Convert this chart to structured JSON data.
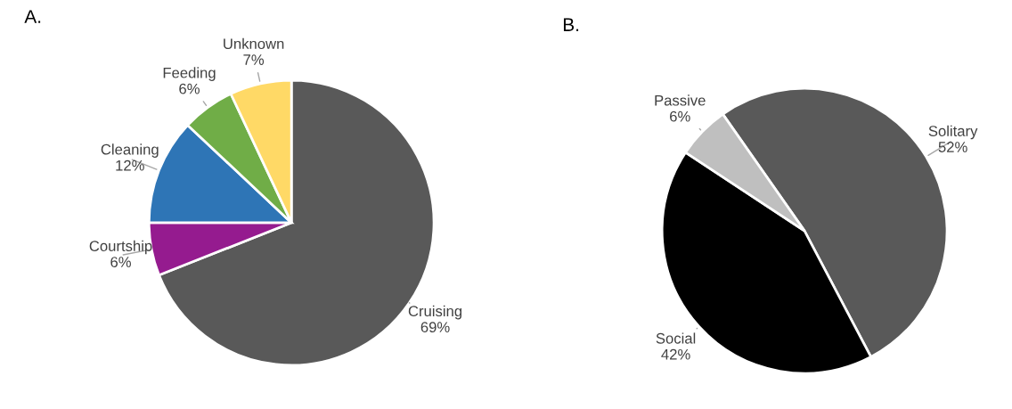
{
  "chart_data": [
    {
      "type": "pie",
      "title": "A.",
      "categories": [
        "Cruising",
        "Courtship",
        "Cleaning",
        "Feeding",
        "Unknown"
      ],
      "values": [
        69,
        6,
        12,
        6,
        7
      ],
      "value_labels": [
        "69%",
        "6%",
        "12%",
        "6%",
        "7%"
      ],
      "colors": [
        "#595959",
        "#951b8f",
        "#2e75b6",
        "#70ad47",
        "#ffd966"
      ]
    },
    {
      "type": "pie",
      "title": "B.",
      "categories": [
        "Solitary",
        "Social",
        "Passive"
      ],
      "values": [
        52,
        42,
        6
      ],
      "value_labels": [
        "52%",
        "42%",
        "6%"
      ],
      "colors": [
        "#595959",
        "#000000",
        "#bfbfbf"
      ]
    }
  ]
}
